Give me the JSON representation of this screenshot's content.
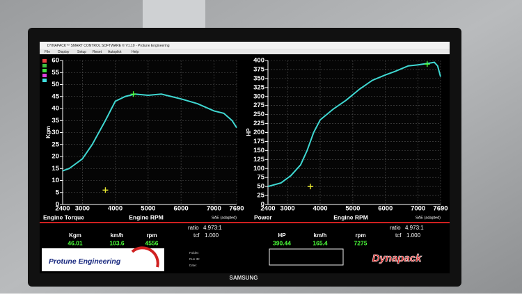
{
  "window": {
    "title": "DYNAPACK™ SMART CONTROL SOFTWARE © V1.10 - Protune Engineering",
    "menu": [
      "File",
      "Display",
      "Setup",
      "Reset",
      "Autopilot",
      "Help"
    ]
  },
  "chart_data": [
    {
      "type": "line",
      "title": "Engine Torque",
      "xlabel": "Engine RPM",
      "ylabel": "Kgm",
      "note": "SAE (adapted)",
      "color": "#3fd8d2",
      "x": [
        2400,
        2600,
        3000,
        3300,
        3700,
        4000,
        4300,
        4600,
        5000,
        5400,
        6000,
        6500,
        7000,
        7300,
        7550,
        7690
      ],
      "values": [
        14,
        15,
        19,
        25,
        35,
        43,
        45,
        46,
        45.5,
        46,
        44,
        42,
        39,
        38,
        35,
        32
      ],
      "markers": [
        {
          "x": 4550,
          "y": 46,
          "color": "#4cff3a"
        },
        {
          "x": 3700,
          "y": 6,
          "color": "#e8e830"
        }
      ],
      "xlim": [
        2400,
        7690
      ],
      "xticks": [
        2400,
        3000,
        4000,
        5000,
        6000,
        7000,
        7690
      ],
      "ylim": [
        0,
        60
      ],
      "yticks": [
        0,
        5,
        10,
        15,
        20,
        25,
        30,
        35,
        40,
        45,
        50,
        55,
        60
      ],
      "grid": true
    },
    {
      "type": "line",
      "title": "Power",
      "xlabel": "Engine RPM",
      "ylabel": "HP",
      "note": "SAE (adapted)",
      "color": "#3fd8d2",
      "x": [
        2400,
        2800,
        3100,
        3400,
        3600,
        3800,
        4000,
        4400,
        4800,
        5200,
        5600,
        6000,
        6300,
        6700,
        7000,
        7300,
        7500,
        7600,
        7690
      ],
      "values": [
        50,
        60,
        80,
        110,
        150,
        200,
        235,
        265,
        290,
        320,
        345,
        360,
        370,
        385,
        388,
        392,
        395,
        385,
        355
      ],
      "markers": [
        {
          "x": 7280,
          "y": 390,
          "color": "#4cff3a"
        },
        {
          "x": 3700,
          "y": 50,
          "color": "#e8e830"
        }
      ],
      "xlim": [
        2400,
        7690
      ],
      "xticks": [
        2400,
        3000,
        4000,
        5000,
        6000,
        7000,
        7690
      ],
      "ylim": [
        0,
        400
      ],
      "yticks": [
        0,
        25,
        50,
        75,
        100,
        125,
        150,
        175,
        200,
        225,
        250,
        275,
        300,
        325,
        350,
        375,
        400
      ],
      "grid": true
    }
  ],
  "readouts": [
    {
      "headers": [
        "Kgm",
        "km/h",
        "rpm"
      ],
      "values": [
        "46.01",
        "103.6",
        "4556"
      ],
      "ratio_label": "ratio",
      "ratio": "4.973:1",
      "tcf_label": "tcf",
      "tcf": "1.000"
    },
    {
      "headers": [
        "HP",
        "km/h",
        "rpm"
      ],
      "values": [
        "390.44",
        "165.4",
        "7275"
      ],
      "ratio_label": "ratio",
      "ratio": "4.973:1",
      "tcf_label": "tcf",
      "tcf": "1.000"
    }
  ],
  "fields": [
    "Folder:",
    "Run ID:",
    "Date:"
  ],
  "logos": {
    "protune": "Protune Engineering",
    "dynapack": "Dynapack"
  },
  "monitor": "SAMSUNG"
}
